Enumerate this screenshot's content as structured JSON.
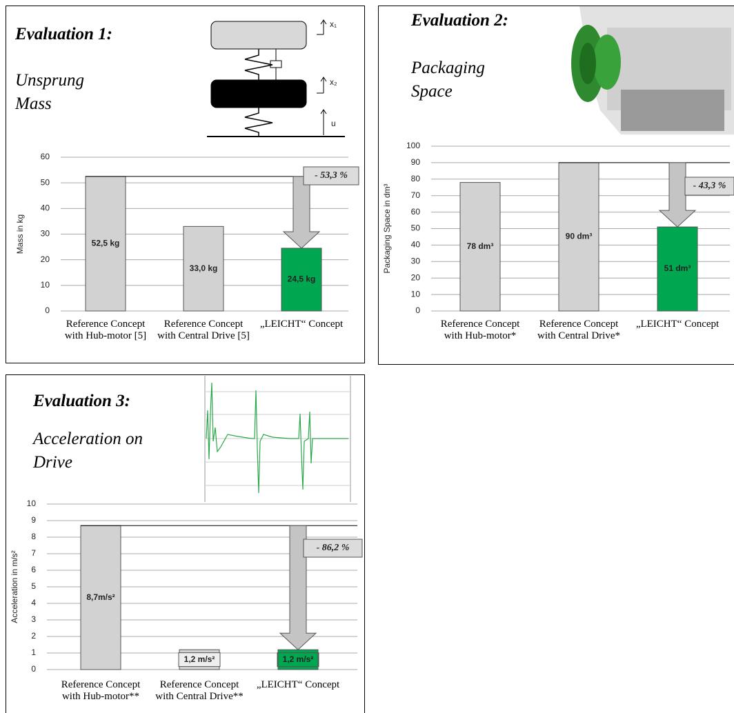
{
  "chart_data": [
    {
      "type": "bar",
      "title": "Evaluation 1:",
      "subtitle": "Unsprung Mass",
      "diagram_labels": [
        "x₁",
        "x₂",
        "u"
      ],
      "ylabel": "Mass in kg",
      "categories": [
        "Reference Concept with Hub-motor [5]",
        "Reference Concept with Central Drive [5]",
        "„LEICHT“ Concept"
      ],
      "values": [
        52.5,
        33.0,
        24.5
      ],
      "value_labels": [
        "52,5 kg",
        "33,0 kg",
        "24,5 kg"
      ],
      "colors": [
        "#d2d2d2",
        "#d2d2d2",
        "#00a650"
      ],
      "annotation": "- 53,3 %",
      "ylim": [
        0,
        60
      ],
      "yticks": [
        0,
        10,
        20,
        30,
        40,
        50,
        60
      ],
      "grid": true
    },
    {
      "type": "bar",
      "title": "Evaluation 2:",
      "subtitle": "Packaging Space",
      "ylabel": "Packaging Space in dm³",
      "categories": [
        "Reference Concept with Hub-motor*",
        "Reference Concept with Central Drive*",
        "„LEICHT“ Concept"
      ],
      "values": [
        78,
        90,
        51
      ],
      "value_labels": [
        "78 dm³",
        "90 dm³",
        "51 dm³"
      ],
      "colors": [
        "#d2d2d2",
        "#d2d2d2",
        "#00a650"
      ],
      "annotation": "- 43,3 %",
      "ylim": [
        0,
        100
      ],
      "yticks": [
        0,
        10,
        20,
        30,
        40,
        50,
        60,
        70,
        80,
        90,
        100
      ],
      "grid": true
    },
    {
      "type": "bar",
      "title": "Evaluation 3:",
      "subtitle": "Acceleration on Drive",
      "ylabel": "Acceleration in m/s²",
      "categories": [
        "Reference Concept with Hub-motor**",
        "Reference Concept with Central Drive**",
        "„LEICHT“ Concept"
      ],
      "values": [
        8.7,
        1.2,
        1.2
      ],
      "value_labels": [
        "8,7m/s²",
        "1,2 m/s²",
        "1,2 m/s²"
      ],
      "colors": [
        "#d2d2d2",
        "#d2d2d2",
        "#00a650"
      ],
      "annotation": "- 86,2 %",
      "ylim": [
        0,
        10
      ],
      "yticks": [
        0,
        1,
        2,
        3,
        4,
        5,
        6,
        7,
        8,
        9,
        10
      ],
      "grid": true
    }
  ]
}
